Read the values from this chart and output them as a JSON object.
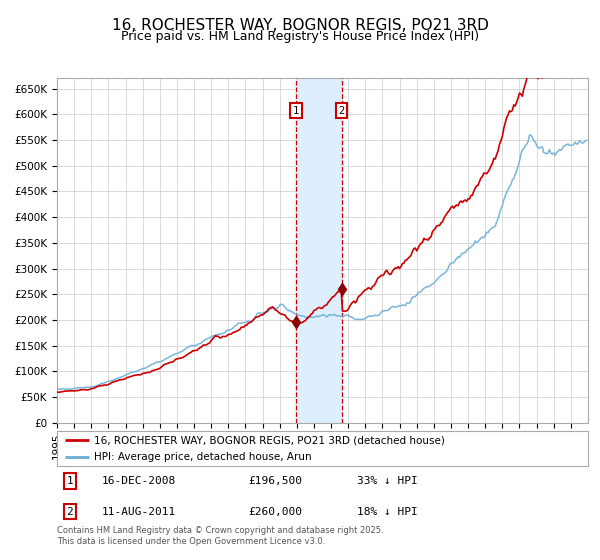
{
  "title": "16, ROCHESTER WAY, BOGNOR REGIS, PO21 3RD",
  "subtitle": "Price paid vs. HM Land Registry's House Price Index (HPI)",
  "ylim": [
    0,
    670000
  ],
  "yticks": [
    0,
    50000,
    100000,
    150000,
    200000,
    250000,
    300000,
    350000,
    400000,
    450000,
    500000,
    550000,
    600000,
    650000
  ],
  "ytick_labels": [
    "£0",
    "£50K",
    "£100K",
    "£150K",
    "£200K",
    "£250K",
    "£300K",
    "£350K",
    "£400K",
    "£450K",
    "£500K",
    "£550K",
    "£600K",
    "£650K"
  ],
  "hpi_color": "#6baed6",
  "price_color": "#cc0000",
  "marker_color": "#8b0000",
  "shade_color": "#ddeeff",
  "dashed_color": "#cc0000",
  "grid_color": "#cccccc",
  "background_color": "#ffffff",
  "legend_labels": [
    "16, ROCHESTER WAY, BOGNOR REGIS, PO21 3RD (detached house)",
    "HPI: Average price, detached house, Arun"
  ],
  "sale1_date_num": 2008.96,
  "sale1_price": 196500,
  "sale2_date_num": 2011.61,
  "sale2_price": 260000,
  "footer": "Contains HM Land Registry data © Crown copyright and database right 2025.\nThis data is licensed under the Open Government Licence v3.0.",
  "title_fontsize": 11,
  "subtitle_fontsize": 9,
  "tick_fontsize": 7.5
}
